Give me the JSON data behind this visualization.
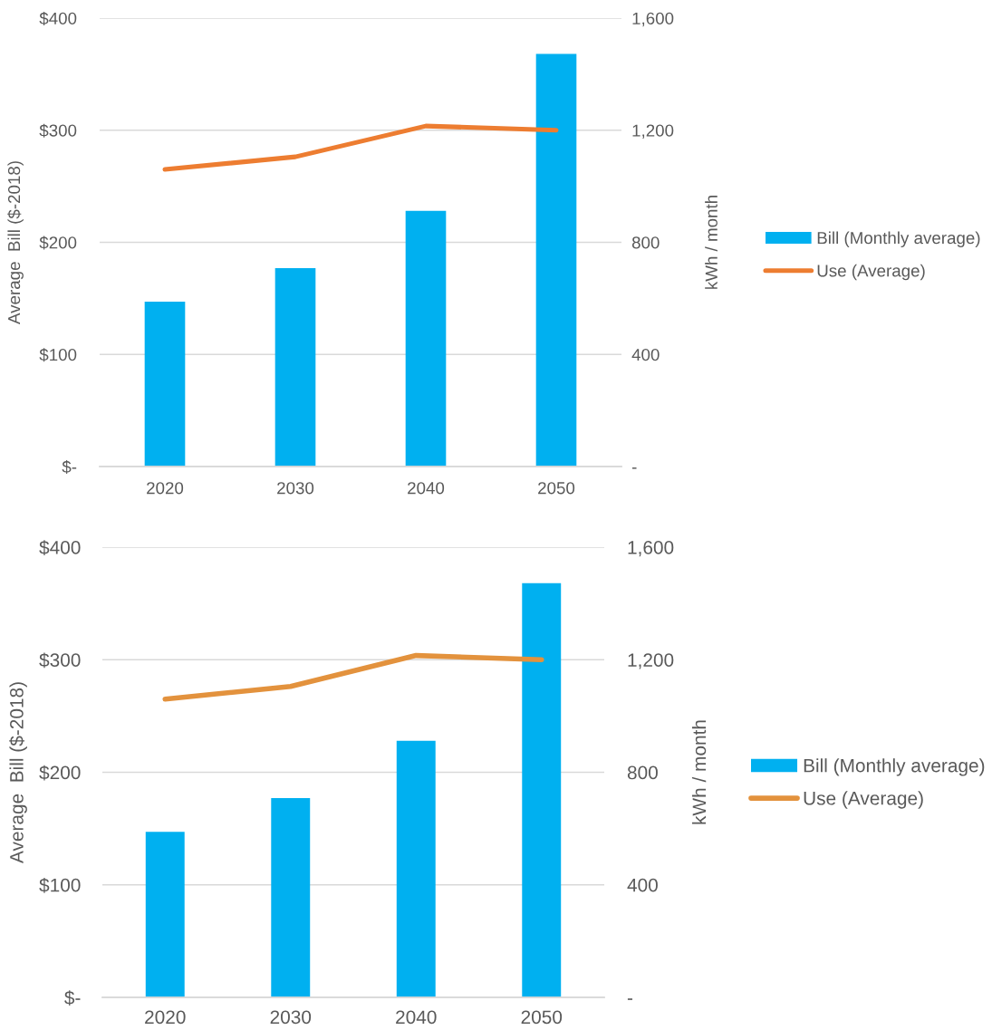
{
  "chart_data": [
    {
      "type": "bar",
      "categories": [
        "2020",
        "2030",
        "2040",
        "2050"
      ],
      "series": [
        {
          "name": "Bill (Monthly average)",
          "color": "#00b0f0",
          "values": [
            147,
            177,
            228,
            368
          ]
        },
        {
          "name": "Use (Average)",
          "type": "line",
          "axis": "y2",
          "color": "#ed7d31",
          "values": [
            1060,
            1105,
            1215,
            1200
          ]
        }
      ],
      "ylabel": "Average  Bill ($-2018)",
      "y2label": "kWh / month",
      "ylim": [
        0,
        400
      ],
      "yticks": [
        {
          "value": 0,
          "label": "$-"
        },
        {
          "value": 100,
          "label": "$100"
        },
        {
          "value": 200,
          "label": "$200"
        },
        {
          "value": 300,
          "label": "$300"
        },
        {
          "value": 400,
          "label": "$400"
        }
      ],
      "y2lim": [
        0,
        1600
      ],
      "y2ticks": [
        {
          "value": 0,
          "label": "-"
        },
        400,
        800,
        {
          "value": 1200,
          "label": "1,200"
        },
        {
          "value": 1600,
          "label": "1,600"
        }
      ],
      "grid": "y",
      "legend": "right"
    },
    {
      "type": "bar",
      "categories": [
        "2020",
        "2030",
        "2040",
        "2050"
      ],
      "series": [
        {
          "name": "Bill (Monthly average)",
          "color": "#00b0f0",
          "values": [
            147,
            177,
            228,
            368
          ]
        },
        {
          "name": "Use (Average)",
          "type": "line",
          "axis": "y2",
          "color": "#e3923d",
          "values": [
            1060,
            1105,
            1215,
            1200
          ]
        }
      ],
      "ylabel": "Average  Bill ($-2018)",
      "y2label": "kWh / month",
      "ylim": [
        0,
        400
      ],
      "yticks": [
        {
          "value": 0,
          "label": "$-"
        },
        {
          "value": 100,
          "label": "$100"
        },
        {
          "value": 200,
          "label": "$200"
        },
        {
          "value": 300,
          "label": "$300"
        },
        {
          "value": 400,
          "label": "$400"
        }
      ],
      "y2lim": [
        0,
        1600
      ],
      "y2ticks": [
        {
          "value": 0,
          "label": "-"
        },
        400,
        800,
        {
          "value": 1200,
          "label": "1,200"
        },
        {
          "value": 1600,
          "label": "1,600"
        }
      ],
      "grid": "y",
      "legend": "right"
    }
  ]
}
